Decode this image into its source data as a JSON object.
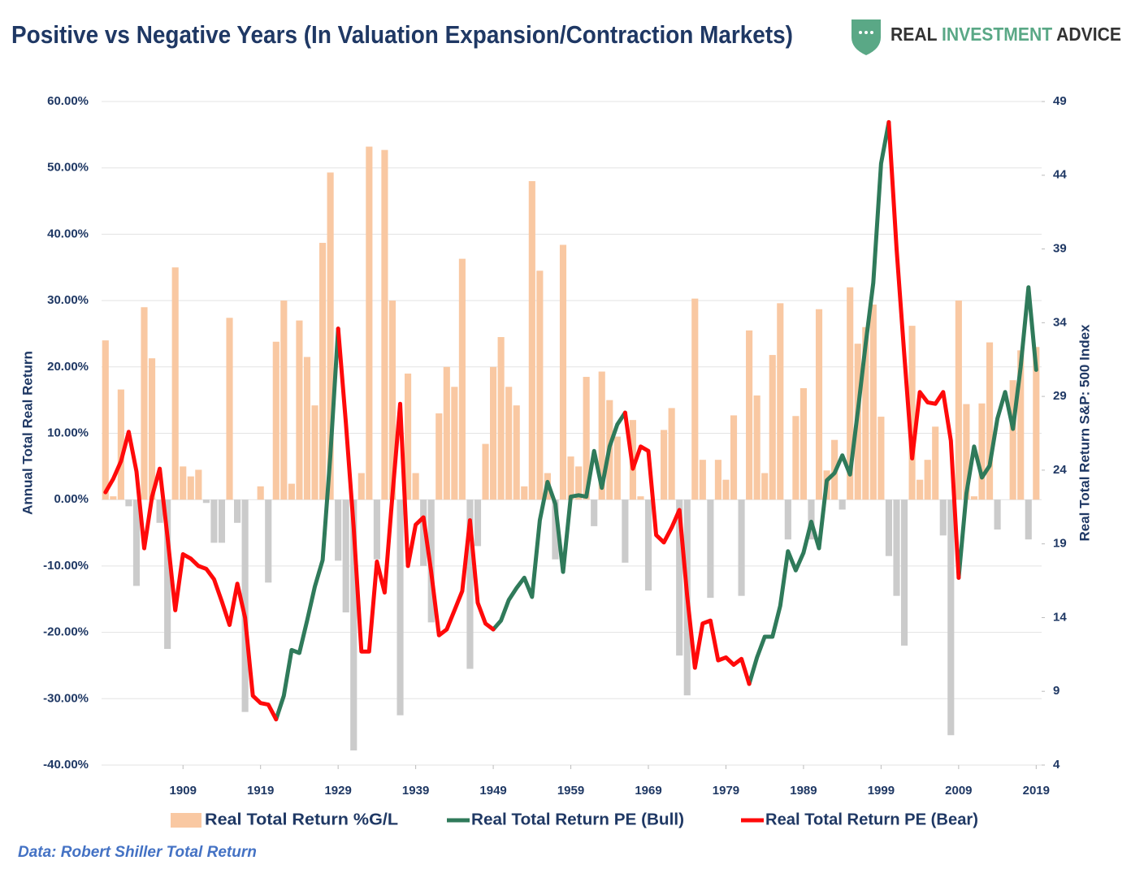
{
  "chart_data": {
    "type": "bar_line",
    "title": "Positive vs Negative Years (In Valuation Expansion/Contraction Markets)",
    "brand": {
      "part1": "REAL ",
      "part2": "INVESTMENT",
      "part3": " ADVICE"
    },
    "source": "Data: Robert Shiller Total Return",
    "y_label": "Annual Total Real Return",
    "y2_label": "Real Total Return S&P: 500 Index",
    "x": [
      1899,
      1900,
      1901,
      1902,
      1903,
      1904,
      1905,
      1906,
      1907,
      1908,
      1909,
      1910,
      1911,
      1912,
      1913,
      1914,
      1915,
      1916,
      1917,
      1918,
      1919,
      1920,
      1921,
      1922,
      1923,
      1924,
      1925,
      1926,
      1927,
      1928,
      1929,
      1930,
      1931,
      1932,
      1933,
      1934,
      1935,
      1936,
      1937,
      1938,
      1939,
      1940,
      1941,
      1942,
      1943,
      1944,
      1945,
      1946,
      1947,
      1948,
      1949,
      1950,
      1951,
      1952,
      1953,
      1954,
      1955,
      1956,
      1957,
      1958,
      1959,
      1960,
      1961,
      1962,
      1963,
      1964,
      1965,
      1966,
      1967,
      1968,
      1969,
      1970,
      1971,
      1972,
      1973,
      1974,
      1975,
      1976,
      1977,
      1978,
      1979,
      1980,
      1981,
      1982,
      1983,
      1984,
      1985,
      1986,
      1987,
      1988,
      1989,
      1990,
      1991,
      1992,
      1993,
      1994,
      1995,
      1996,
      1997,
      1998,
      1999,
      2000,
      2001,
      2002,
      2003,
      2004,
      2005,
      2006,
      2007,
      2008,
      2009,
      2010,
      2011,
      2012,
      2013,
      2014,
      2015,
      2016,
      2017,
      2018,
      2019
    ],
    "xlim": [
      1898.5,
      2019.7
    ],
    "xticks": [
      1909,
      1919,
      1929,
      1939,
      1949,
      1959,
      1969,
      1979,
      1989,
      1999,
      2009,
      2019
    ],
    "ylim": [
      -40,
      60
    ],
    "yticks": [
      {
        "value": 60,
        "label": "60.00%"
      },
      {
        "value": 50,
        "label": "50.00%"
      },
      {
        "value": 40,
        "label": "40.00%"
      },
      {
        "value": 30,
        "label": "30.00%"
      },
      {
        "value": 20,
        "label": "20.00%"
      },
      {
        "value": 10,
        "label": "10.00%"
      },
      {
        "value": 0,
        "label": "0.00%"
      },
      {
        "value": -10,
        "label": "-10.00%"
      },
      {
        "value": -20,
        "label": "-20.00%"
      },
      {
        "value": -30,
        "label": "-30.00%"
      },
      {
        "value": -40,
        "label": "-40.00%"
      }
    ],
    "y2lim": [
      4,
      49
    ],
    "y2ticks": [
      49,
      44,
      39,
      34,
      29,
      24,
      19,
      14,
      9,
      4
    ],
    "grid": true,
    "legend": "bottom",
    "series": [
      {
        "name": "Real Total Return %G/L",
        "kind": "bar",
        "color": "#f9c8a2",
        "negative_color": "#cbcbcb",
        "values": [
          24,
          0.5,
          16.6,
          -1,
          -13,
          29,
          21.3,
          -3.5,
          -22.5,
          35,
          5,
          3.5,
          4.5,
          -0.5,
          -6.5,
          -6.5,
          27.4,
          -3.5,
          -32,
          0,
          2,
          -12.5,
          23.8,
          30,
          2.4,
          27,
          21.5,
          14.2,
          38.7,
          49.3,
          -9.2,
          -17,
          -37.8,
          4,
          53.2,
          -9,
          52.7,
          30,
          -32.5,
          19,
          4,
          -10,
          -18.5,
          13,
          20,
          17,
          36.3,
          -25.5,
          -7,
          8.4,
          20,
          24.5,
          17,
          14.2,
          2,
          48,
          34.5,
          4,
          -9,
          38.4,
          6.5,
          5,
          18.5,
          -4,
          19.3,
          15,
          9.5,
          -9.5,
          12,
          0.5,
          -13.7,
          0,
          10.5,
          13.8,
          -23.5,
          -29.5,
          30.3,
          6,
          -14.8,
          6,
          3,
          12.7,
          -14.5,
          25.5,
          15.7,
          4,
          21.8,
          29.6,
          -6,
          12.6,
          16.8,
          -6,
          28.7,
          4.4,
          9,
          -1.5,
          32,
          23.5,
          26,
          29.4,
          12.5,
          -8.5,
          -14.5,
          -22,
          26.2,
          3,
          6,
          11,
          -5.4,
          -35.5,
          30,
          14.4,
          0.5,
          14.5,
          23.7,
          -4.5,
          0,
          18,
          22.5,
          -6,
          23
        ]
      },
      {
        "name": "Real Total Return PE (Bull)",
        "kind": "line",
        "axis": "y2",
        "color": "#2f7a5a",
        "values": [
          null,
          null,
          null,
          null,
          null,
          null,
          null,
          null,
          null,
          null,
          null,
          null,
          null,
          null,
          null,
          null,
          null,
          null,
          null,
          null,
          null,
          null,
          7.1,
          8.7,
          11.8,
          11.6,
          13.8,
          16.1,
          17.9,
          25.0,
          33.6,
          null,
          null,
          null,
          null,
          null,
          null,
          null,
          null,
          null,
          null,
          null,
          null,
          null,
          null,
          null,
          null,
          null,
          null,
          null,
          13.2,
          13.8,
          15.2,
          16.0,
          16.7,
          15.4,
          20.6,
          23.2,
          21.7,
          17.1,
          22.2,
          22.3,
          22.2,
          25.3,
          22.8,
          25.6,
          27.1,
          27.9,
          null,
          null,
          null,
          null,
          null,
          null,
          null,
          null,
          null,
          null,
          null,
          null,
          null,
          null,
          null,
          9.5,
          11.3,
          12.7,
          12.7,
          14.8,
          18.5,
          17.2,
          18.4,
          20.5,
          18.7,
          23.3,
          23.8,
          25.0,
          23.7,
          28.0,
          32.5,
          36.7,
          44.8,
          47.6,
          null,
          null,
          null,
          null,
          null,
          null,
          null,
          null,
          16.7,
          22.4,
          25.6,
          23.5,
          24.3,
          27.5,
          29.3,
          26.8,
          31.0,
          36.4,
          30.8
        ]
      },
      {
        "name": "Real Total Return PE (Bear)",
        "kind": "line",
        "axis": "y2",
        "color": "#ff0a0a",
        "values": [
          22.5,
          23.4,
          24.6,
          26.6,
          23.9,
          18.7,
          22.2,
          24.1,
          19.5,
          14.5,
          18.3,
          18.0,
          17.5,
          17.3,
          16.6,
          15.1,
          13.5,
          16.3,
          14.0,
          8.7,
          8.2,
          8.1,
          7.1,
          null,
          null,
          null,
          null,
          null,
          null,
          null,
          33.6,
          27.2,
          20.1,
          11.7,
          11.7,
          17.8,
          15.7,
          22.3,
          28.5,
          17.5,
          20.3,
          20.8,
          17.1,
          12.8,
          13.2,
          14.5,
          15.8,
          20.6,
          15.0,
          13.6,
          13.2,
          null,
          null,
          null,
          null,
          null,
          null,
          null,
          null,
          null,
          null,
          null,
          null,
          null,
          null,
          null,
          null,
          27.9,
          24.1,
          25.6,
          25.3,
          19.6,
          19.1,
          20.1,
          21.3,
          15.5,
          10.6,
          13.6,
          13.8,
          11.1,
          11.3,
          10.8,
          11.2,
          9.5,
          null,
          null,
          null,
          null,
          null,
          null,
          null,
          null,
          null,
          null,
          null,
          null,
          null,
          null,
          null,
          null,
          null,
          47.6,
          39.0,
          31.8,
          24.8,
          29.3,
          28.6,
          28.5,
          29.3,
          26.0,
          16.7,
          null,
          null,
          null,
          null,
          null,
          null,
          null,
          null,
          null,
          null
        ]
      }
    ]
  }
}
